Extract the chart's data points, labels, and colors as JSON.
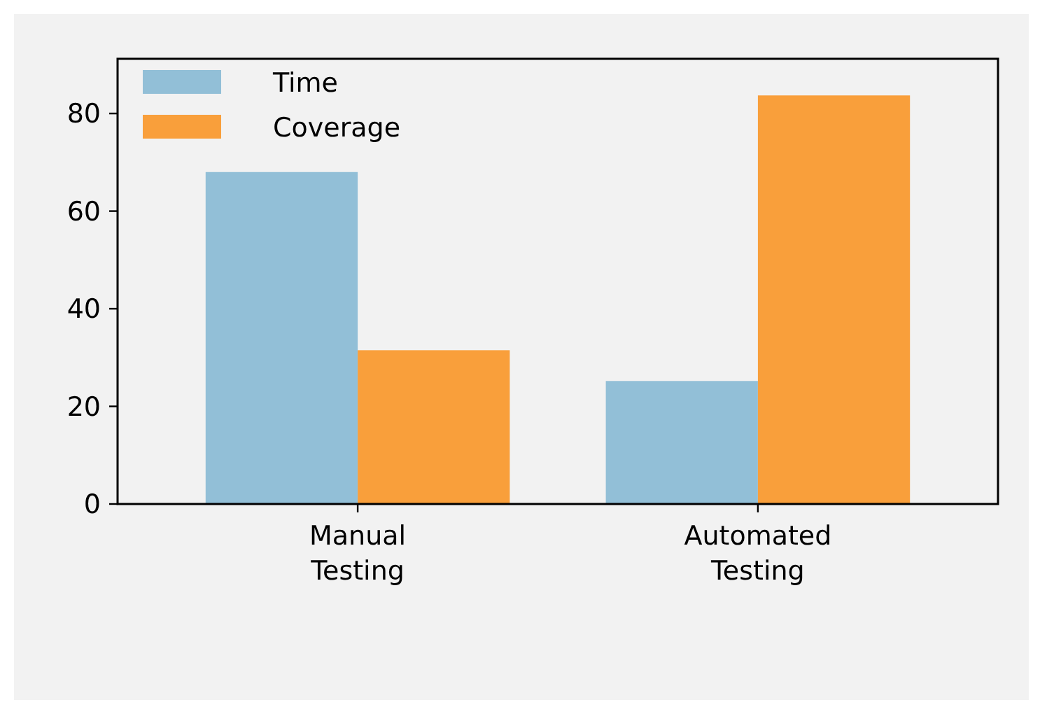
{
  "chart_data": {
    "type": "bar",
    "categories": [
      "Manual Testing",
      "Automated Testing"
    ],
    "series": [
      {
        "name": "Time",
        "color": "#92bfd7",
        "values": [
          68,
          25.2
        ]
      },
      {
        "name": "Coverage",
        "color": "#f99f3b",
        "values": [
          31.5,
          83.7
        ]
      }
    ],
    "ylim": [
      0,
      91.2
    ],
    "yticks": [
      0,
      20,
      40,
      60,
      80
    ],
    "grid": false,
    "legend": "top left"
  }
}
